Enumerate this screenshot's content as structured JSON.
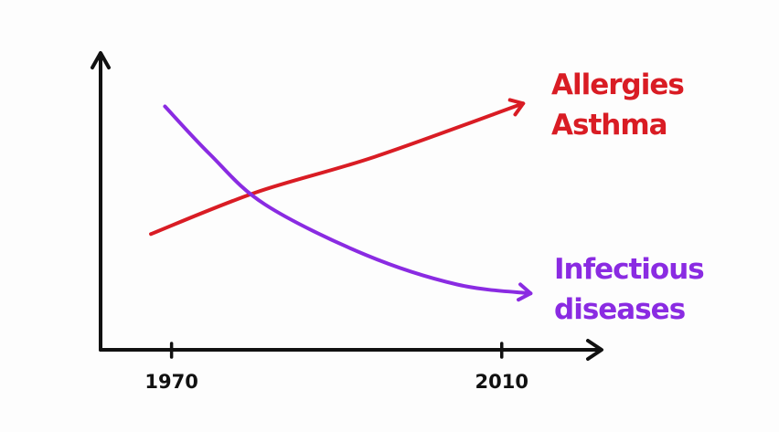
{
  "chart_data": {
    "type": "line",
    "title": "",
    "xlabel": "",
    "ylabel": "",
    "xlim": [
      1961.4,
      2022.1
    ],
    "ylim": [
      0,
      100
    ],
    "grid": false,
    "x_ticks": [
      1970,
      2010
    ],
    "x_tick_labels": [
      "1970",
      "2010"
    ],
    "series": [
      {
        "name": "Allergies Asthma",
        "label_lines": [
          "Allergies",
          "Asthma"
        ],
        "color": "#d91c24",
        "x": [
          1967.5,
          1980.2,
          1994.6,
          2012.6
        ],
        "y": [
          39,
          53,
          65,
          83
        ]
      },
      {
        "name": "Infectious diseases",
        "label_lines": [
          "Infectious",
          "diseases"
        ],
        "color": "#8a2be2",
        "x": [
          1969.2,
          1974.6,
          1981.3,
          1993.5,
          2004.6,
          2013.5
        ],
        "y": [
          82,
          66,
          49,
          32,
          22,
          19
        ]
      }
    ]
  }
}
